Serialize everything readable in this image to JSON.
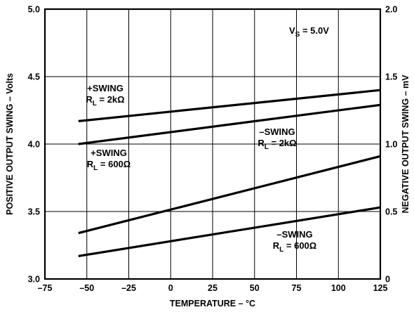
{
  "chart_data": {
    "type": "line",
    "xlabel": "TEMPERATURE – °C",
    "ylabel": "POSITIVE OUTPUT SWING – Volts",
    "y2label": "NEGATIVE OUTPUT SWING – mV",
    "xlim": [
      -75,
      125
    ],
    "ylim": [
      3.0,
      5.0
    ],
    "y2lim": [
      0,
      2.0
    ],
    "xticks": [
      -75,
      -50,
      -25,
      0,
      25,
      50,
      75,
      100,
      125
    ],
    "yticks": [
      3.0,
      3.5,
      4.0,
      4.5,
      5.0
    ],
    "y2ticks": [
      0,
      0.5,
      1.0,
      1.5,
      2.0
    ],
    "xtick_labels": [
      "–75",
      "–50",
      "–25",
      "0",
      "25",
      "50",
      "75",
      "100",
      "125"
    ],
    "ytick_labels": [
      "3.0",
      "3.5",
      "4.0",
      "4.5",
      "5.0"
    ],
    "y2tick_labels": [
      "0",
      "0.5",
      "1.0",
      "1.5",
      "2.0"
    ],
    "grid": true,
    "condition": {
      "main": "V",
      "sub": "S",
      "rest": " = 5.0V"
    },
    "series": [
      {
        "axis": "left",
        "x": [
          -55,
          125
        ],
        "y": [
          4.17,
          4.4
        ]
      },
      {
        "axis": "left",
        "x": [
          -55,
          125
        ],
        "y": [
          4.0,
          4.29
        ]
      },
      {
        "axis": "right",
        "x": [
          -55,
          125
        ],
        "y": [
          0.34,
          0.91
        ]
      },
      {
        "axis": "right",
        "x": [
          -55,
          125
        ],
        "y": [
          0.17,
          0.53
        ]
      }
    ],
    "annotations": [
      {
        "line1": "+SWING",
        "main": "R",
        "sub": "L",
        "rest": " = 2kΩ"
      },
      {
        "line1": "+SWING",
        "main": "R",
        "sub": "L",
        "rest": " = 600Ω"
      },
      {
        "line1": "–SWING",
        "main": "R",
        "sub": "L",
        "rest": " = 2kΩ"
      },
      {
        "line1": "–SWING",
        "main": "R",
        "sub": "L",
        "rest": " = 600Ω"
      }
    ]
  }
}
